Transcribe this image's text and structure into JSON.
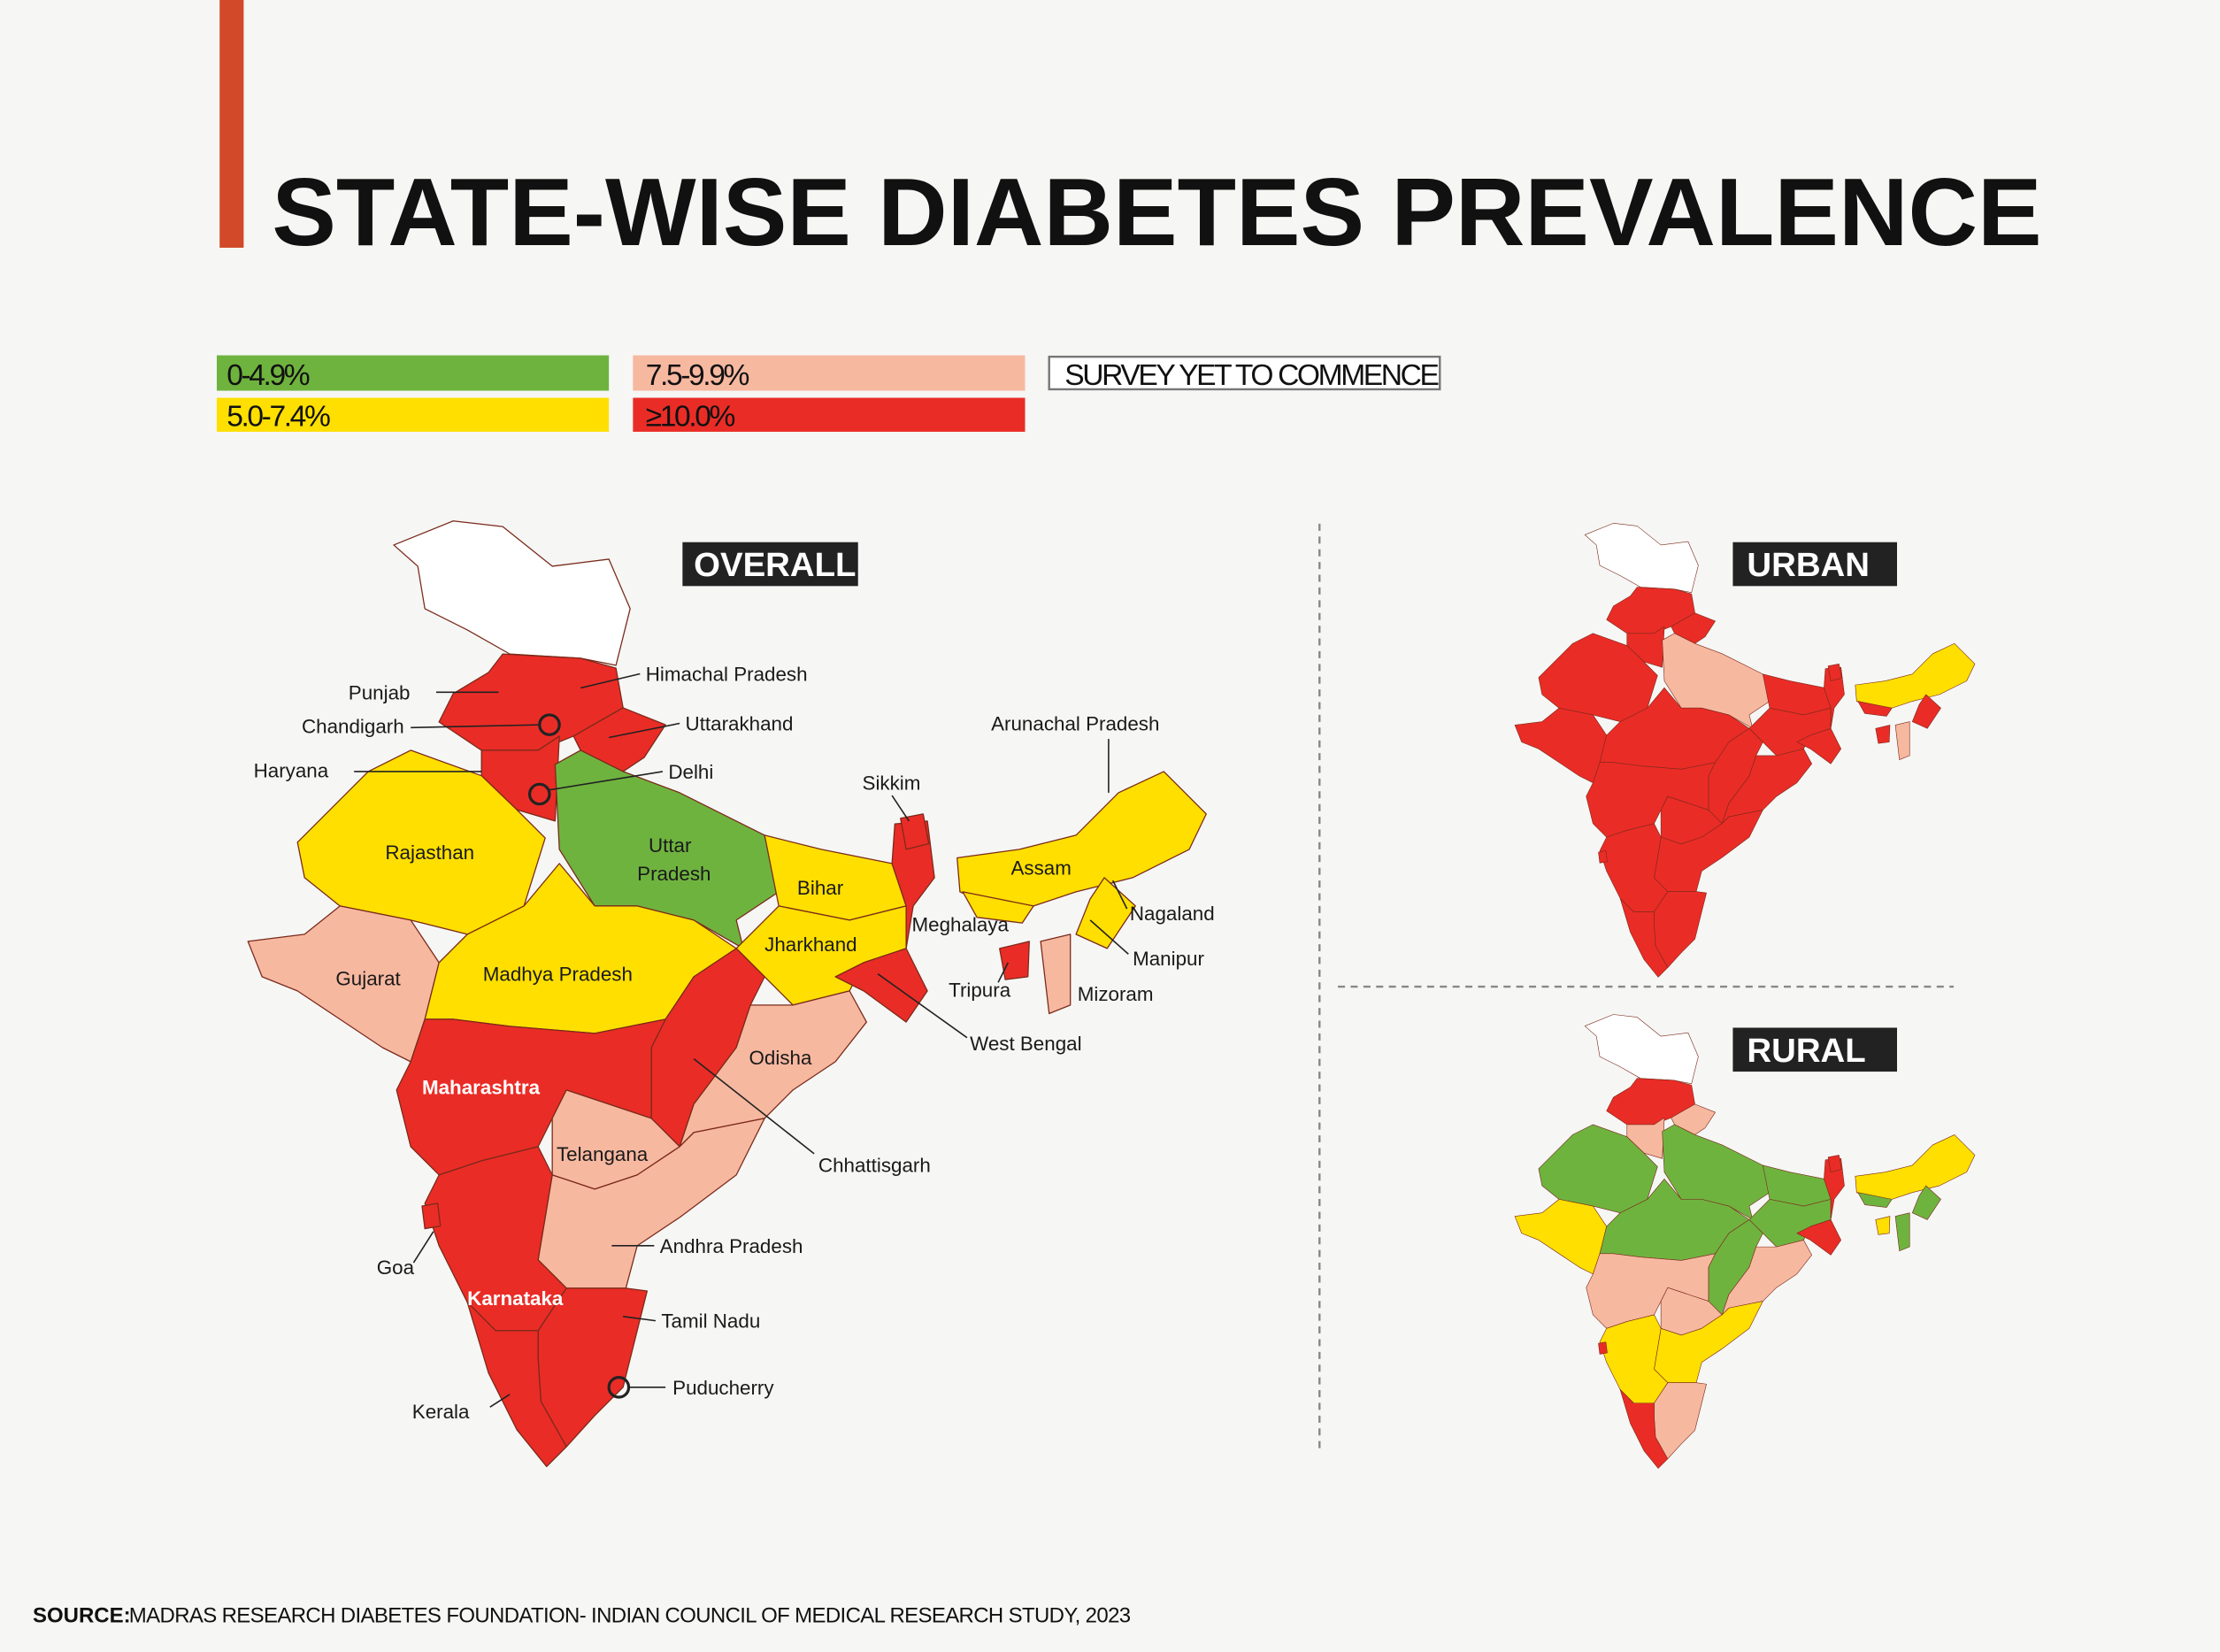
{
  "title": "STATE-WISE DIABETES PREVALENCE",
  "colors": {
    "accent_bar": "#d2492a",
    "c0": "#6fb33f",
    "c1": "#ffdf00",
    "c2": "#f7b8a0",
    "c3": "#ea2c26",
    "none": "#ffffff"
  },
  "legend": [
    {
      "key": "c0",
      "label": "0-4.9%"
    },
    {
      "key": "c1",
      "label": "5.0-7.4%"
    },
    {
      "key": "c2",
      "label": "7.5-9.9%"
    },
    {
      "key": "c3",
      "label": "≥10.0%"
    },
    {
      "key": "none",
      "label": "SURVEY YET TO COMMENCE"
    }
  ],
  "maps": {
    "overall": {
      "tag": "OVERALL",
      "categories": {
        "jammu-kashmir": "none",
        "punjab-himachal": "c3",
        "uttarakhand": "c3",
        "haryana": "c3",
        "rajasthan": "c1",
        "uttar-pradesh": "c0",
        "gujarat": "c2",
        "madhya-pradesh": "c1",
        "bihar": "c1",
        "jharkhand": "c1",
        "west-bengal": "c3",
        "sikkim": "c3",
        "chhattisgarh": "c3",
        "odisha": "c2",
        "maharashtra": "c3",
        "telangana": "c2",
        "andhra-pradesh": "c2",
        "karnataka": "c3",
        "goa": "c3",
        "tamil-nadu": "c3",
        "kerala": "c3",
        "northeast": "c1",
        "meghalaya": "c1",
        "manipur-nagaland": "c1",
        "mizoram": "c2",
        "tripura": "c3"
      }
    },
    "urban": {
      "tag": "URBAN",
      "categories": {
        "jammu-kashmir": "none",
        "punjab-himachal": "c3",
        "uttarakhand": "c3",
        "haryana": "c3",
        "rajasthan": "c3",
        "uttar-pradesh": "c2",
        "gujarat": "c3",
        "madhya-pradesh": "c3",
        "bihar": "c3",
        "jharkhand": "c3",
        "west-bengal": "c3",
        "sikkim": "c3",
        "chhattisgarh": "c3",
        "odisha": "c3",
        "maharashtra": "c3",
        "telangana": "c3",
        "andhra-pradesh": "c3",
        "karnataka": "c3",
        "goa": "c3",
        "tamil-nadu": "c3",
        "kerala": "c3",
        "northeast": "c1",
        "meghalaya": "c3",
        "manipur-nagaland": "c3",
        "mizoram": "c2",
        "tripura": "c3"
      }
    },
    "rural": {
      "tag": "RURAL",
      "categories": {
        "jammu-kashmir": "none",
        "punjab-himachal": "c3",
        "uttarakhand": "c2",
        "haryana": "c2",
        "rajasthan": "c0",
        "uttar-pradesh": "c0",
        "gujarat": "c1",
        "madhya-pradesh": "c0",
        "bihar": "c0",
        "jharkhand": "c0",
        "west-bengal": "c3",
        "sikkim": "c3",
        "chhattisgarh": "c0",
        "odisha": "c2",
        "maharashtra": "c2",
        "telangana": "c2",
        "andhra-pradesh": "c1",
        "karnataka": "c1",
        "goa": "c3",
        "tamil-nadu": "c2",
        "kerala": "c3",
        "northeast": "c1",
        "meghalaya": "c0",
        "manipur-nagaland": "c0",
        "mizoram": "c0",
        "tripura": "c1"
      }
    }
  },
  "labels": {
    "himachal": "Himachal Pradesh",
    "punjab": "Punjab",
    "chandigarh": "Chandigarh",
    "uttarakhand": "Uttarakhand",
    "haryana": "Haryana",
    "delhi": "Delhi",
    "sikkim": "Sikkim",
    "arunachal": "Arunachal Pradesh",
    "rajasthan": "Rajasthan",
    "uttar": "Uttar",
    "pradesh": "Pradesh",
    "bihar": "Bihar",
    "assam": "Assam",
    "meghalaya": "Meghalaya",
    "nagaland": "Nagaland",
    "manipur": "Manipur",
    "jharkhand": "Jharkhand",
    "gujarat": "Gujarat",
    "madhya_pradesh": "Madhya Pradesh",
    "tripura": "Tripura",
    "mizoram": "Mizoram",
    "west_bengal": "West Bengal",
    "odisha": "Odisha",
    "maharashtra": "Maharashtra",
    "telangana": "Telangana",
    "chhattisgarh": "Chhattisgarh",
    "andhra_pradesh": "Andhra Pradesh",
    "goa": "Goa",
    "karnataka": "Karnataka",
    "tamil_nadu": "Tamil Nadu",
    "puducherry": "Puducherry",
    "kerala": "Kerala"
  },
  "source": {
    "label": "SOURCE:",
    "text": "MADRAS RESEARCH DIABETES FOUNDATION- INDIAN COUNCIL OF MEDICAL RESEARCH STUDY, 2023"
  }
}
